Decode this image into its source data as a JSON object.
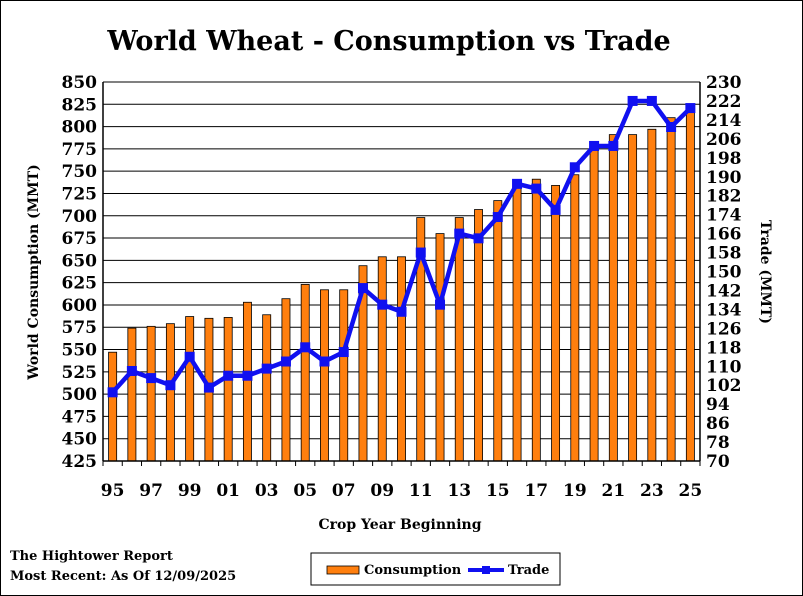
{
  "chart_data": {
    "type": "bar",
    "title": "World Wheat - Consumption vs Trade",
    "xlabel": "Crop Year Beginning",
    "ylabel": "World Consumption (MMT)",
    "y2label": "Trade (MMT)",
    "categories": [
      "95",
      "96",
      "97",
      "98",
      "99",
      "00",
      "01",
      "02",
      "03",
      "04",
      "05",
      "06",
      "07",
      "08",
      "09",
      "10",
      "11",
      "12",
      "13",
      "14",
      "15",
      "16",
      "17",
      "18",
      "19",
      "20",
      "21",
      "22",
      "23",
      "24",
      "25"
    ],
    "x_tick_labels": [
      "95",
      "97",
      "99",
      "01",
      "03",
      "05",
      "07",
      "09",
      "11",
      "13",
      "15",
      "17",
      "19",
      "21",
      "23",
      "25"
    ],
    "ylim": [
      425,
      850
    ],
    "y_ticks": [
      425,
      450,
      475,
      500,
      525,
      550,
      575,
      600,
      625,
      650,
      675,
      700,
      725,
      750,
      775,
      800,
      825,
      850
    ],
    "y2lim": [
      70,
      230
    ],
    "y2_ticks": [
      70,
      78,
      86,
      94,
      102,
      110,
      118,
      126,
      134,
      142,
      150,
      158,
      166,
      174,
      182,
      190,
      198,
      206,
      214,
      222,
      230
    ],
    "grid": true,
    "legend_position": "bottom-center",
    "series": [
      {
        "name": "Consumption",
        "type": "bar",
        "axis": "left",
        "color": "#FF7F0E",
        "values": [
          547,
          574,
          576,
          579,
          587,
          585,
          586,
          603,
          589,
          607,
          623,
          617,
          617,
          644,
          654,
          654,
          698,
          680,
          698,
          707,
          717,
          738,
          741,
          734,
          746,
          782,
          791,
          791,
          797,
          810,
          820
        ]
      },
      {
        "name": "Trade",
        "type": "line",
        "axis": "right",
        "color": "#1010F0",
        "values": [
          99,
          108,
          105,
          102,
          114,
          101,
          106,
          106,
          109,
          112,
          118,
          112,
          116,
          143,
          136,
          133,
          158,
          136,
          166,
          164,
          173,
          187,
          185,
          176,
          194,
          203,
          203,
          222,
          222,
          211,
          219
        ]
      }
    ]
  },
  "footer": {
    "line1": "The Hightower Report",
    "line2": "Most Recent: As Of 12/09/2025"
  },
  "legend": {
    "consumption_label": "Consumption",
    "trade_label": "Trade"
  }
}
